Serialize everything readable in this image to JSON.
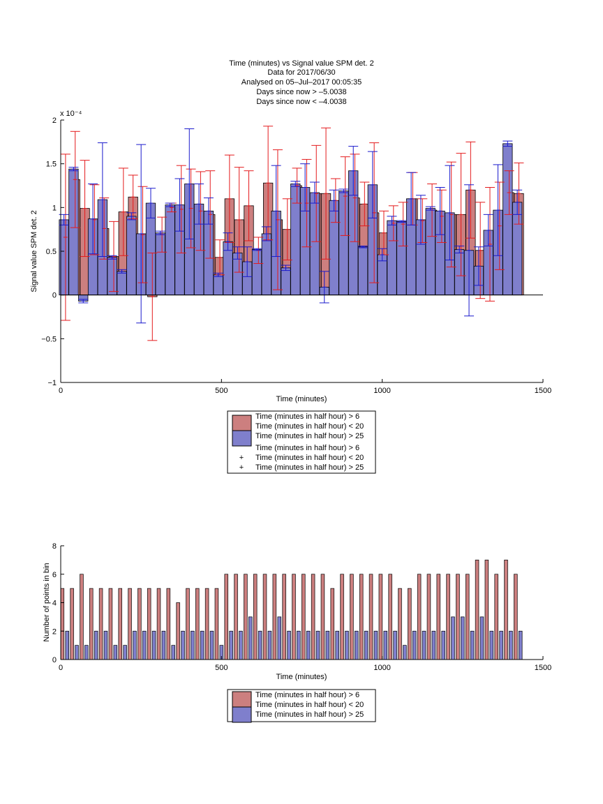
{
  "title_lines": [
    "Time (minutes) vs Signal value SPM det. 2",
    "Data for 2017/06/30",
    "Analysed on 05–Jul–2017 00:05:35",
    "Days since now > –5.0038",
    "Days since now < –4.0038"
  ],
  "legend_labels": [
    "Time (minutes in half hour) > 6",
    "Time (minutes in half hour) < 20",
    "Time (minutes in half hour) > 25"
  ],
  "colors": {
    "red_fill": "#cc7f7f",
    "blue_fill": "#7f7fcc",
    "red_err": "#e41a1c",
    "blue_err": "#1a1acc"
  },
  "chart_data": [
    {
      "type": "bar",
      "xlabel": "Time (minutes)",
      "ylabel": "Signal value SPM det. 2",
      "yexponent": "x 10⁻⁴",
      "xlim": [
        0,
        1500
      ],
      "ylim": [
        -1,
        2
      ],
      "xticks": [
        "0",
        "500",
        "1000",
        "1500"
      ],
      "yticks": [
        "−1",
        "−0.5",
        "0",
        "0.5",
        "1",
        "1.5",
        "2"
      ],
      "legend": [
        "Time (minutes in half hour) > 6",
        "Time (minutes in half hour) < 20",
        "Time (minutes in half hour) > 25"
      ],
      "series": [
        {
          "name": "Time (minutes in half hour) > 6",
          "x": [
            15,
            45,
            75,
            105,
            135,
            165,
            195,
            225,
            255,
            285,
            315,
            345,
            375,
            405,
            435,
            465,
            495,
            525,
            555,
            585,
            615,
            645,
            675,
            705,
            735,
            765,
            795,
            825,
            855,
            885,
            915,
            945,
            975,
            1005,
            1035,
            1065,
            1095,
            1125,
            1155,
            1185,
            1215,
            1245,
            1275,
            1305,
            1335,
            1365,
            1395,
            1425
          ],
          "values": [
            0.66,
            1.32,
            0.99,
            0.86,
            0.76,
            0.44,
            0.95,
            1.12,
            0.69,
            -0.02,
            0.69,
            1.0,
            0.98,
            0.99,
            0.96,
            0.92,
            0.43,
            1.1,
            0.86,
            1.02,
            0.51,
            1.28,
            0.86,
            0.75,
            1.25,
            1.05,
            1.16,
            1.16,
            1.08,
            1.13,
            1.11,
            1.04,
            0.94,
            0.71,
            0.82,
            0.81,
            1.1,
            0.85,
            0.97,
            0.9,
            0.92,
            0.92,
            1.2,
            0.51,
            0.58,
            0.79,
            1.17,
            1.16
          ],
          "err": [
            0.95,
            0.55,
            0.55,
            0.4,
            0.35,
            0.4,
            0.5,
            0.25,
            0.55,
            0.5,
            0.2,
            0.05,
            0.5,
            0.45,
            0.45,
            0.5,
            0.2,
            0.5,
            0.6,
            0.4,
            0.15,
            0.65,
            0.8,
            0.35,
            0.2,
            0.5,
            0.55,
            0.75,
            0.25,
            0.45,
            0.5,
            0.25,
            0.8,
            0.25,
            0.2,
            0.25,
            0.3,
            0.25,
            0.3,
            0.3,
            0.6,
            0.7,
            0.55,
            0.55,
            0.65,
            0.5,
            0.25,
            0.35
          ]
        },
        {
          "name": "Time (minutes in half hour) > 25",
          "x": [
            10,
            40,
            70,
            100,
            130,
            160,
            190,
            220,
            250,
            280,
            310,
            340,
            370,
            400,
            430,
            460,
            490,
            520,
            550,
            580,
            610,
            640,
            670,
            700,
            730,
            760,
            790,
            820,
            850,
            880,
            910,
            940,
            970,
            1000,
            1030,
            1060,
            1090,
            1120,
            1150,
            1180,
            1210,
            1240,
            1270,
            1300,
            1330,
            1360,
            1390,
            1420
          ],
          "values": [
            0.86,
            1.44,
            -0.07,
            0.87,
            1.09,
            0.43,
            0.27,
            0.9,
            0.7,
            1.05,
            0.71,
            1.03,
            1.03,
            1.27,
            1.04,
            0.96,
            0.23,
            0.61,
            0.48,
            0.38,
            0.52,
            0.7,
            0.96,
            0.31,
            1.27,
            1.23,
            1.17,
            0.09,
            1.08,
            1.19,
            1.42,
            0.55,
            1.26,
            0.46,
            0.85,
            0.84,
            1.1,
            0.86,
            0.99,
            0.96,
            0.94,
            0.52,
            0.51,
            0.33,
            0.74,
            0.97,
            1.73,
            1.06
          ],
          "err": [
            0.06,
            0.02,
            0.02,
            0.4,
            0.65,
            0.02,
            0.02,
            0.04,
            1.02,
            0.17,
            0.02,
            0.02,
            0.3,
            0.63,
            0.23,
            0.15,
            0.02,
            0.1,
            0.07,
            0.17,
            0.01,
            0.08,
            0.52,
            0.03,
            0.03,
            0.27,
            0.12,
            0.18,
            0.12,
            0.02,
            0.28,
            0.01,
            0.38,
            0.07,
            0.05,
            0.01,
            0.3,
            0.28,
            0.02,
            0.27,
            0.54,
            0.04,
            0.75,
            0.22,
            0.18,
            0.52,
            0.03,
            0.14
          ]
        }
      ]
    },
    {
      "type": "bar",
      "xlabel": "Time (minutes)",
      "ylabel": "Number of points in bin",
      "xlim": [
        0,
        1500
      ],
      "ylim": [
        0,
        8
      ],
      "xticks": [
        "0",
        "500",
        "1000",
        "1500"
      ],
      "yticks": [
        "0",
        "2",
        "4",
        "6",
        "8"
      ],
      "legend": [
        "Time (minutes in half hour) > 6",
        "Time (minutes in half hour) < 20",
        "Time (minutes in half hour) > 25"
      ],
      "series": [
        {
          "name": "Time (minutes in half hour) > 6",
          "x": [
            5,
            35,
            65,
            95,
            125,
            155,
            185,
            215,
            245,
            275,
            305,
            335,
            365,
            395,
            425,
            455,
            485,
            515,
            545,
            575,
            605,
            635,
            665,
            695,
            725,
            755,
            785,
            815,
            845,
            875,
            905,
            935,
            965,
            995,
            1025,
            1055,
            1085,
            1115,
            1145,
            1175,
            1205,
            1235,
            1265,
            1295,
            1325,
            1355,
            1385,
            1415
          ],
          "values": [
            5,
            5,
            6,
            5,
            5,
            5,
            5,
            5,
            5,
            5,
            5,
            5,
            4,
            5,
            5,
            5,
            5,
            6,
            6,
            6,
            6,
            6,
            6,
            6,
            6,
            6,
            6,
            6,
            5,
            6,
            6,
            6,
            6,
            6,
            6,
            5,
            5,
            6,
            6,
            6,
            6,
            6,
            6,
            7,
            7,
            6,
            7,
            6
          ]
        },
        {
          "name": "Time (minutes in half hour) > 25",
          "x": [
            20,
            50,
            80,
            110,
            140,
            170,
            200,
            230,
            260,
            290,
            320,
            350,
            380,
            410,
            440,
            470,
            500,
            530,
            560,
            590,
            620,
            650,
            680,
            710,
            740,
            770,
            800,
            830,
            860,
            890,
            920,
            950,
            980,
            1010,
            1040,
            1070,
            1100,
            1130,
            1160,
            1190,
            1220,
            1250,
            1280,
            1310,
            1340,
            1370,
            1400,
            1430
          ],
          "values": [
            2,
            1,
            1,
            2,
            2,
            1,
            1,
            2,
            2,
            2,
            2,
            1,
            2,
            2,
            2,
            2,
            1,
            2,
            2,
            3,
            2,
            2,
            3,
            2,
            2,
            2,
            2,
            2,
            2,
            2,
            2,
            2,
            2,
            2,
            2,
            1,
            2,
            2,
            2,
            2,
            3,
            3,
            2,
            3,
            2,
            2,
            2,
            2
          ]
        }
      ]
    }
  ]
}
